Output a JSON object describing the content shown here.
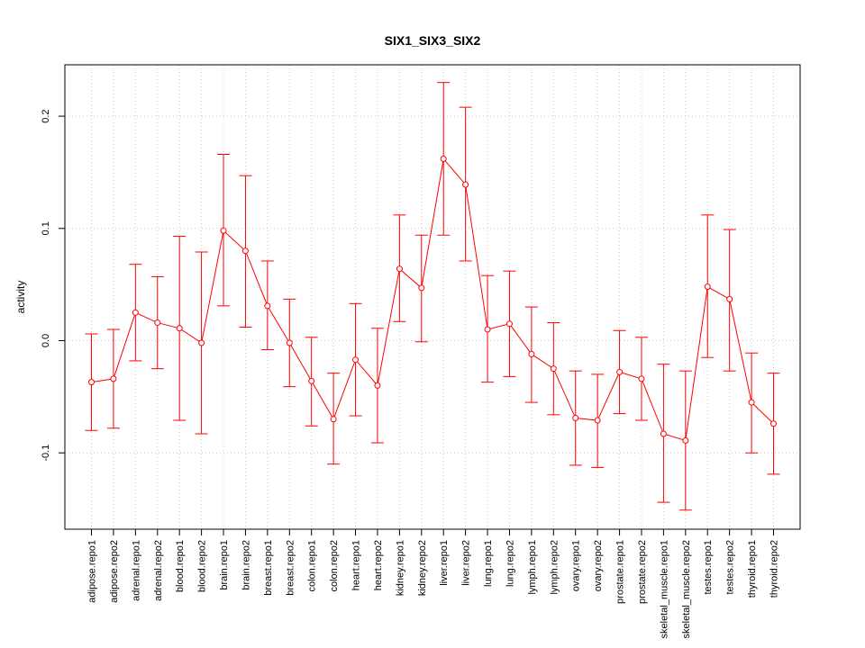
{
  "chart_data": {
    "type": "line",
    "title": "SIX1_SIX3_SIX2",
    "xlabel": "",
    "ylabel": "activity",
    "ylim": [
      -0.168,
      0.245
    ],
    "yticks": [
      -0.1,
      0.0,
      0.1,
      0.2
    ],
    "ytick_labels": [
      "-0.1",
      "0.0",
      "0.1",
      "0.2"
    ],
    "grid": true,
    "colors": {
      "series": "#ff0000",
      "grid": "#cccccc",
      "frame": "#000000"
    },
    "categories": [
      "adipose.repo1",
      "adipose.repo2",
      "adrenal.repo1",
      "adrenal.repo2",
      "blood.repo1",
      "blood.repo2",
      "brain.repo1",
      "brain.repo2",
      "breast.repo1",
      "breast.repo2",
      "colon.repo1",
      "colon.repo2",
      "heart.repo1",
      "heart.repo2",
      "kidney.repo1",
      "kidney.repo2",
      "liver.repo1",
      "liver.repo2",
      "lung.repo1",
      "lung.repo2",
      "lymph.repo1",
      "lymph.repo2",
      "ovary.repo1",
      "ovary.repo2",
      "prostate.repo1",
      "prostate.repo2",
      "skeletal_muscle.repo1",
      "skeletal_muscle.repo2",
      "testes.repo1",
      "testes.repo2",
      "thyroid.repo1",
      "thyroid.repo2"
    ],
    "series": [
      {
        "values": [
          -0.037,
          -0.034,
          0.025,
          0.016,
          0.011,
          -0.002,
          0.098,
          0.08,
          0.031,
          -0.002,
          -0.036,
          -0.07,
          -0.017,
          -0.04,
          0.064,
          0.047,
          0.162,
          0.139,
          0.01,
          0.015,
          -0.012,
          -0.025,
          -0.069,
          -0.071,
          -0.028,
          -0.034,
          -0.083,
          -0.089,
          0.048,
          0.037,
          -0.055,
          -0.074
        ],
        "upper": [
          0.006,
          0.01,
          0.068,
          0.057,
          0.093,
          0.079,
          0.166,
          0.147,
          0.071,
          0.037,
          0.003,
          -0.029,
          0.033,
          0.011,
          0.112,
          0.094,
          0.23,
          0.208,
          0.058,
          0.062,
          0.03,
          0.016,
          -0.027,
          -0.03,
          0.009,
          0.003,
          -0.021,
          -0.027,
          0.112,
          0.099,
          -0.011,
          -0.029
        ],
        "lower": [
          -0.08,
          -0.078,
          -0.018,
          -0.025,
          -0.071,
          -0.083,
          0.031,
          0.012,
          -0.008,
          -0.041,
          -0.076,
          -0.11,
          -0.067,
          -0.091,
          0.017,
          -0.001,
          0.094,
          0.071,
          -0.037,
          -0.032,
          -0.055,
          -0.066,
          -0.111,
          -0.113,
          -0.065,
          -0.071,
          -0.144,
          -0.151,
          -0.015,
          -0.027,
          -0.1,
          -0.119
        ]
      }
    ]
  }
}
